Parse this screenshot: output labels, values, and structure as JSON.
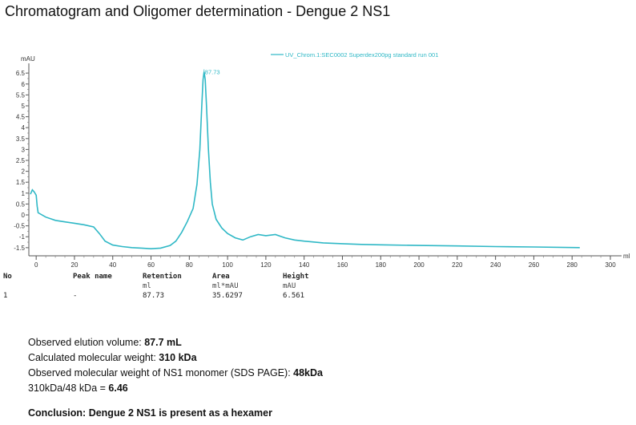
{
  "title": "Chromatogram and Oligomer determination - Dengue 2 NS1",
  "chart_data": {
    "type": "line",
    "ylabel": "mAU",
    "xlabel": "ml",
    "xlim": [
      -3,
      300
    ],
    "ylim": [
      -1.8,
      6.8
    ],
    "xticks": [
      0,
      20,
      40,
      60,
      80,
      100,
      120,
      140,
      160,
      180,
      200,
      220,
      240,
      260,
      280,
      300
    ],
    "yticks": [
      -1.5,
      -1,
      -0.5,
      0,
      0.5,
      1,
      1.5,
      2,
      2.5,
      3,
      3.5,
      4,
      4.5,
      5,
      5.5,
      6,
      6.5
    ],
    "series": [
      {
        "name": "UV_Chrom.1:SEC0002 Superdex200pg standard run 001",
        "color": "#2fb8c6",
        "points": [
          [
            -3,
            0.95
          ],
          [
            -2,
            1.15
          ],
          [
            -1,
            1.05
          ],
          [
            0,
            0.9
          ],
          [
            0.5,
            0.4
          ],
          [
            1,
            0.1
          ],
          [
            5,
            -0.1
          ],
          [
            10,
            -0.25
          ],
          [
            15,
            -0.32
          ],
          [
            20,
            -0.38
          ],
          [
            25,
            -0.45
          ],
          [
            30,
            -0.55
          ],
          [
            33,
            -0.85
          ],
          [
            36,
            -1.2
          ],
          [
            40,
            -1.38
          ],
          [
            45,
            -1.45
          ],
          [
            50,
            -1.5
          ],
          [
            55,
            -1.52
          ],
          [
            60,
            -1.55
          ],
          [
            65,
            -1.52
          ],
          [
            70,
            -1.4
          ],
          [
            73,
            -1.2
          ],
          [
            76,
            -0.8
          ],
          [
            79,
            -0.3
          ],
          [
            82,
            0.3
          ],
          [
            84,
            1.4
          ],
          [
            85.5,
            3.0
          ],
          [
            86.5,
            5.0
          ],
          [
            87.2,
            6.2
          ],
          [
            87.73,
            6.561
          ],
          [
            88.3,
            6.2
          ],
          [
            89,
            5.0
          ],
          [
            90,
            3.0
          ],
          [
            91,
            1.5
          ],
          [
            92,
            0.5
          ],
          [
            94,
            -0.2
          ],
          [
            97,
            -0.6
          ],
          [
            100,
            -0.85
          ],
          [
            104,
            -1.05
          ],
          [
            108,
            -1.15
          ],
          [
            112,
            -1.0
          ],
          [
            116,
            -0.9
          ],
          [
            120,
            -0.95
          ],
          [
            125,
            -0.9
          ],
          [
            130,
            -1.05
          ],
          [
            135,
            -1.15
          ],
          [
            140,
            -1.2
          ],
          [
            150,
            -1.28
          ],
          [
            160,
            -1.32
          ],
          [
            170,
            -1.35
          ],
          [
            180,
            -1.37
          ],
          [
            200,
            -1.4
          ],
          [
            220,
            -1.42
          ],
          [
            240,
            -1.45
          ],
          [
            260,
            -1.47
          ],
          [
            284,
            -1.5
          ]
        ]
      }
    ],
    "annotations": [
      {
        "x": 87.73,
        "y": 6.561,
        "text": "87.73"
      }
    ]
  },
  "peak_table": {
    "headers": [
      "No",
      "Peak name",
      "Retention",
      "Area",
      "Height"
    ],
    "units": [
      "",
      "",
      "ml",
      "ml*mAU",
      "mAU"
    ],
    "rows": [
      [
        "1",
        "-",
        "87.73",
        "35.6297",
        "6.561"
      ]
    ]
  },
  "notes": [
    {
      "label": "Observed elution volume: ",
      "value": "87.7 mL"
    },
    {
      "label": "Calculated molecular weight: ",
      "value": "310 kDa"
    },
    {
      "label": "Observed molecular weight of NS1 monomer (SDS PAGE): ",
      "value": "48kDa"
    },
    {
      "label": "310kDa/48 kDa = ",
      "value": "6.46"
    }
  ],
  "conclusion": "Conclusion: Dengue 2 NS1 is present as a hexamer"
}
